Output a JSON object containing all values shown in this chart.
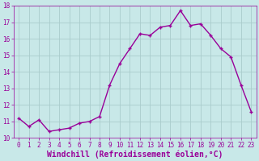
{
  "x": [
    0,
    1,
    2,
    3,
    4,
    5,
    6,
    7,
    8,
    9,
    10,
    11,
    12,
    13,
    14,
    15,
    16,
    17,
    18,
    19,
    20,
    21,
    22,
    23
  ],
  "y": [
    11.2,
    10.7,
    11.1,
    10.4,
    10.5,
    10.6,
    10.9,
    11.0,
    11.3,
    13.2,
    14.5,
    15.4,
    16.3,
    16.2,
    16.7,
    16.8,
    17.7,
    16.8,
    16.9,
    16.2,
    15.4,
    14.9,
    13.2,
    11.6
  ],
  "line_color": "#990099",
  "marker": "+",
  "marker_color": "#990099",
  "bg_color": "#c8e8e8",
  "grid_color": "#aacccc",
  "xlabel": "Windchill (Refroidissement éolien,°C)",
  "xlabel_color": "#990099",
  "tick_color": "#990099",
  "ylim": [
    10,
    18
  ],
  "xlim": [
    -0.5,
    23.5
  ],
  "yticks": [
    10,
    11,
    12,
    13,
    14,
    15,
    16,
    17,
    18
  ],
  "xticks": [
    0,
    1,
    2,
    3,
    4,
    5,
    6,
    7,
    8,
    9,
    10,
    11,
    12,
    13,
    14,
    15,
    16,
    17,
    18,
    19,
    20,
    21,
    22,
    23
  ],
  "tick_fontsize": 5.5,
  "xlabel_fontsize": 7,
  "linewidth": 1.0,
  "markersize": 3.5
}
